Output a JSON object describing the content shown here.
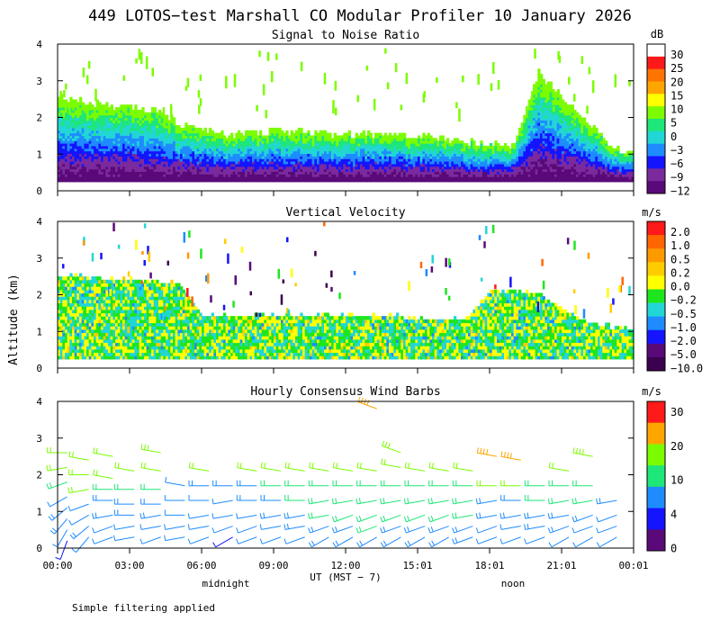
{
  "header": {
    "title": "449 LOTOS−test Marshall CO Modular Profiler 10 January 2026"
  },
  "y_axis_label": "Altitude (km)",
  "x_axis": {
    "ticks": [
      "00:00",
      "03:00",
      "06:00",
      "09:00",
      "12:00",
      "15:01",
      "18:01",
      "21:01",
      "00:01"
    ],
    "label": "UT  (MST − 7)",
    "midnight_label": "midnight",
    "noon_label": "noon"
  },
  "footer": {
    "note": "Simple filtering applied"
  },
  "colors": {
    "snr": [
      "#5a0a78",
      "#7b2a9e",
      "#1414ff",
      "#1e8cff",
      "#22d6d6",
      "#1ee678",
      "#7cfc00",
      "#ffff00",
      "#ffa500",
      "#ff7300",
      "#ff1a1a",
      "#ffffff"
    ],
    "velocity": [
      "#3c0050",
      "#5a0a78",
      "#1414ff",
      "#1e8cff",
      "#22d6d6",
      "#1ee61e",
      "#ffff00",
      "#ffcc00",
      "#ff9900",
      "#ff6600",
      "#ff1a1a"
    ],
    "wind": [
      "#5a0a78",
      "#1414ff",
      "#1e8cff",
      "#1ee678",
      "#7cfc00",
      "#ffa500",
      "#ff1a1a"
    ]
  },
  "chart_data": [
    {
      "type": "heatmap",
      "title": "Signal to Noise Ratio",
      "xlabel": "UT  (MST − 7)",
      "ylabel": "Altitude (km)",
      "xlim": [
        0,
        24
      ],
      "ylim": [
        0,
        4
      ],
      "y_ticks": [
        "0",
        "1",
        "2",
        "3",
        "4"
      ],
      "colorbar": {
        "unit": "dB",
        "labels": [
          "30",
          "25",
          "20",
          "15",
          "10",
          "5",
          "0",
          "−3",
          "−6",
          "−9",
          "−12"
        ]
      },
      "layer_tops_km": [
        {
          "t": 0,
          "top": 2.5
        },
        {
          "t": 2,
          "top": 2.3
        },
        {
          "t": 4,
          "top": 2.2
        },
        {
          "t": 5,
          "top": 1.8
        },
        {
          "t": 7,
          "top": 1.5
        },
        {
          "t": 9,
          "top": 1.6
        },
        {
          "t": 12,
          "top": 1.5
        },
        {
          "t": 15,
          "top": 1.5
        },
        {
          "t": 17,
          "top": 1.3
        },
        {
          "t": 19,
          "top": 1.2
        },
        {
          "t": 20,
          "top": 3.2
        },
        {
          "t": 23,
          "top": 1.2
        },
        {
          "t": 23.9,
          "top": 1.0
        }
      ]
    },
    {
      "type": "heatmap",
      "title": "Vertical Velocity",
      "xlabel": "UT  (MST − 7)",
      "ylabel": "Altitude (km)",
      "xlim": [
        0,
        24
      ],
      "ylim": [
        0,
        4
      ],
      "y_ticks": [
        "0",
        "1",
        "2",
        "3",
        "4"
      ],
      "colorbar": {
        "unit": "m/s",
        "labels": [
          "2.0",
          "1.0",
          "0.5",
          "0.2",
          "0.0",
          "−0.2",
          "−0.5",
          "−1.0",
          "−2.0",
          "−5.0",
          "−10.0"
        ]
      },
      "layer_tops_km": [
        {
          "t": 0,
          "top": 2.5
        },
        {
          "t": 5,
          "top": 2.3
        },
        {
          "t": 6,
          "top": 1.4
        },
        {
          "t": 14,
          "top": 1.4
        },
        {
          "t": 15,
          "top": 1.3
        },
        {
          "t": 17,
          "top": 1.3
        },
        {
          "t": 18,
          "top": 2.1
        },
        {
          "t": 20,
          "top": 2.0
        },
        {
          "t": 22,
          "top": 1.2
        },
        {
          "t": 23.9,
          "top": 1.0
        }
      ]
    },
    {
      "type": "scatter",
      "title": "Hourly Consensus Wind Barbs",
      "xlabel": "UT  (MST − 7)",
      "ylabel": "Altitude (km)",
      "xlim": [
        0,
        24
      ],
      "ylim": [
        0,
        4
      ],
      "y_ticks": [
        "0",
        "1",
        "2",
        "3",
        "4"
      ],
      "colorbar": {
        "unit": "m/s",
        "labels": [
          "30",
          "20",
          "10",
          "4",
          "0"
        ]
      },
      "barbs": [
        {
          "t": 0.4,
          "levels": [
            [
              0.2,
              5,
              200
            ],
            [
              0.5,
              6,
              210
            ],
            [
              0.8,
              8,
              220
            ],
            [
              1.1,
              8,
              230
            ],
            [
              1.4,
              6,
              240
            ],
            [
              1.8,
              10,
              250
            ],
            [
              2.2,
              12,
              260
            ],
            [
              2.6,
              12,
              270
            ]
          ]
        },
        {
          "t": 1.3,
          "levels": [
            [
              0.3,
              6,
              220
            ],
            [
              0.6,
              8,
              230
            ],
            [
              0.9,
              7,
              240
            ],
            [
              1.2,
              6,
              250
            ],
            [
              1.6,
              12,
              260
            ],
            [
              2.0,
              12,
              270
            ],
            [
              2.4,
              12,
              280
            ]
          ]
        },
        {
          "t": 2.3,
          "levels": [
            [
              0.3,
              6,
              250
            ],
            [
              0.6,
              7,
              250
            ],
            [
              0.9,
              8,
              260
            ],
            [
              1.3,
              8,
              270
            ],
            [
              1.6,
              9,
              270
            ],
            [
              1.9,
              12,
              280
            ],
            [
              2.5,
              12,
              280
            ]
          ]
        },
        {
          "t": 3.2,
          "levels": [
            [
              0.3,
              7,
              260
            ],
            [
              0.6,
              6,
              260
            ],
            [
              0.9,
              8,
              270
            ],
            [
              1.2,
              8,
              270
            ],
            [
              1.6,
              10,
              270
            ],
            [
              2.1,
              12,
              280
            ]
          ]
        },
        {
          "t": 4.3,
          "levels": [
            [
              0.3,
              6,
              250
            ],
            [
              0.6,
              7,
              260
            ],
            [
              0.9,
              8,
              260
            ],
            [
              1.2,
              8,
              270
            ],
            [
              1.6,
              9,
              270
            ],
            [
              2.1,
              12,
              280
            ],
            [
              2.6,
              14,
              280
            ]
          ]
        },
        {
          "t": 5.3,
          "levels": [
            [
              0.3,
              6,
              260
            ],
            [
              0.6,
              7,
              260
            ],
            [
              0.9,
              6,
              270
            ],
            [
              1.3,
              7,
              270
            ],
            [
              1.7,
              7,
              280
            ]
          ]
        },
        {
          "t": 6.3,
          "levels": [
            [
              0.3,
              6,
              250
            ],
            [
              0.6,
              6,
              260
            ],
            [
              0.9,
              7,
              260
            ],
            [
              1.3,
              7,
              270
            ],
            [
              1.7,
              8,
              270
            ],
            [
              2.1,
              12,
              280
            ]
          ]
        },
        {
          "t": 7.3,
          "levels": [
            [
              0.3,
              5,
              240
            ],
            [
              0.6,
              6,
              250
            ],
            [
              0.9,
              7,
              260
            ],
            [
              1.3,
              7,
              260
            ],
            [
              1.7,
              8,
              270
            ]
          ]
        },
        {
          "t": 8.3,
          "levels": [
            [
              0.3,
              6,
              250
            ],
            [
              0.6,
              7,
              250
            ],
            [
              0.9,
              7,
              260
            ],
            [
              1.3,
              8,
              270
            ],
            [
              1.7,
              8,
              270
            ],
            [
              2.1,
              12,
              280
            ]
          ]
        },
        {
          "t": 9.3,
          "levels": [
            [
              0.3,
              6,
              250
            ],
            [
              0.6,
              7,
              260
            ],
            [
              0.9,
              8,
              260
            ],
            [
              1.3,
              8,
              270
            ],
            [
              1.7,
              9,
              270
            ],
            [
              2.1,
              12,
              280
            ]
          ]
        },
        {
          "t": 10.3,
          "levels": [
            [
              0.3,
              7,
              250
            ],
            [
              0.6,
              8,
              260
            ],
            [
              0.9,
              8,
              260
            ],
            [
              1.3,
              9,
              270
            ],
            [
              1.7,
              9,
              270
            ],
            [
              2.1,
              12,
              280
            ]
          ]
        },
        {
          "t": 11.3,
          "levels": [
            [
              0.3,
              8,
              240
            ],
            [
              0.6,
              8,
              250
            ],
            [
              0.9,
              9,
              260
            ],
            [
              1.3,
              9,
              260
            ],
            [
              1.7,
              10,
              270
            ],
            [
              2.1,
              12,
              280
            ]
          ]
        },
        {
          "t": 12.3,
          "levels": [
            [
              0.3,
              8,
              240
            ],
            [
              0.6,
              8,
              250
            ],
            [
              0.9,
              9,
              250
            ],
            [
              1.3,
              9,
              260
            ],
            [
              1.7,
              10,
              270
            ],
            [
              2.1,
              12,
              280
            ]
          ]
        },
        {
          "t": 13.3,
          "levels": [
            [
              0.3,
              8,
              240
            ],
            [
              0.6,
              9,
              250
            ],
            [
              0.9,
              9,
              250
            ],
            [
              1.3,
              9,
              260
            ],
            [
              1.7,
              10,
              270
            ],
            [
              2.1,
              12,
              280
            ],
            [
              3.8,
              25,
              290
            ]
          ]
        },
        {
          "t": 14.3,
          "levels": [
            [
              0.3,
              8,
              240
            ],
            [
              0.6,
              8,
              250
            ],
            [
              0.9,
              9,
              250
            ],
            [
              1.3,
              9,
              260
            ],
            [
              1.7,
              10,
              270
            ],
            [
              2.2,
              12,
              280
            ],
            [
              2.6,
              14,
              290
            ]
          ]
        },
        {
          "t": 15.3,
          "levels": [
            [
              0.3,
              8,
              240
            ],
            [
              0.6,
              8,
              250
            ],
            [
              0.9,
              9,
              250
            ],
            [
              1.3,
              9,
              260
            ],
            [
              1.7,
              10,
              270
            ],
            [
              2.1,
              12,
              280
            ]
          ]
        },
        {
          "t": 16.3,
          "levels": [
            [
              0.3,
              8,
              240
            ],
            [
              0.6,
              8,
              250
            ],
            [
              0.9,
              9,
              250
            ],
            [
              1.3,
              9,
              260
            ],
            [
              1.7,
              10,
              270
            ],
            [
              2.1,
              12,
              280
            ]
          ]
        },
        {
          "t": 17.3,
          "levels": [
            [
              0.3,
              8,
              250
            ],
            [
              0.6,
              8,
              250
            ],
            [
              0.9,
              9,
              260
            ],
            [
              1.3,
              9,
              260
            ],
            [
              1.7,
              10,
              270
            ],
            [
              2.1,
              12,
              280
            ]
          ]
        },
        {
          "t": 18.3,
          "levels": [
            [
              0.3,
              6,
              250
            ],
            [
              0.6,
              7,
              250
            ],
            [
              0.9,
              8,
              260
            ],
            [
              1.3,
              8,
              260
            ],
            [
              1.7,
              12,
              270
            ],
            [
              2.5,
              22,
              280
            ]
          ]
        },
        {
          "t": 19.3,
          "levels": [
            [
              0.3,
              6,
              250
            ],
            [
              0.6,
              6,
              260
            ],
            [
              0.9,
              8,
              260
            ],
            [
              1.3,
              8,
              270
            ],
            [
              1.7,
              12,
              270
            ],
            [
              2.4,
              20,
              280
            ]
          ]
        },
        {
          "t": 20.3,
          "levels": [
            [
              0.3,
              7,
              250
            ],
            [
              0.6,
              8,
              260
            ],
            [
              0.9,
              8,
              260
            ],
            [
              1.3,
              9,
              270
            ],
            [
              1.7,
              10,
              270
            ]
          ]
        },
        {
          "t": 21.3,
          "levels": [
            [
              0.3,
              7,
              240
            ],
            [
              0.6,
              8,
              250
            ],
            [
              0.9,
              8,
              260
            ],
            [
              1.3,
              9,
              260
            ],
            [
              1.7,
              10,
              270
            ],
            [
              2.1,
              12,
              280
            ]
          ]
        },
        {
          "t": 22.3,
          "levels": [
            [
              0.3,
              6,
              240
            ],
            [
              0.6,
              7,
              250
            ],
            [
              0.9,
              8,
              250
            ],
            [
              1.3,
              9,
              260
            ],
            [
              1.7,
              10,
              270
            ],
            [
              2.5,
              18,
              280
            ]
          ]
        },
        {
          "t": 23.3,
          "levels": [
            [
              0.3,
              6,
              240
            ],
            [
              0.6,
              6,
              250
            ],
            [
              0.9,
              7,
              250
            ],
            [
              1.3,
              8,
              260
            ]
          ]
        }
      ]
    }
  ]
}
